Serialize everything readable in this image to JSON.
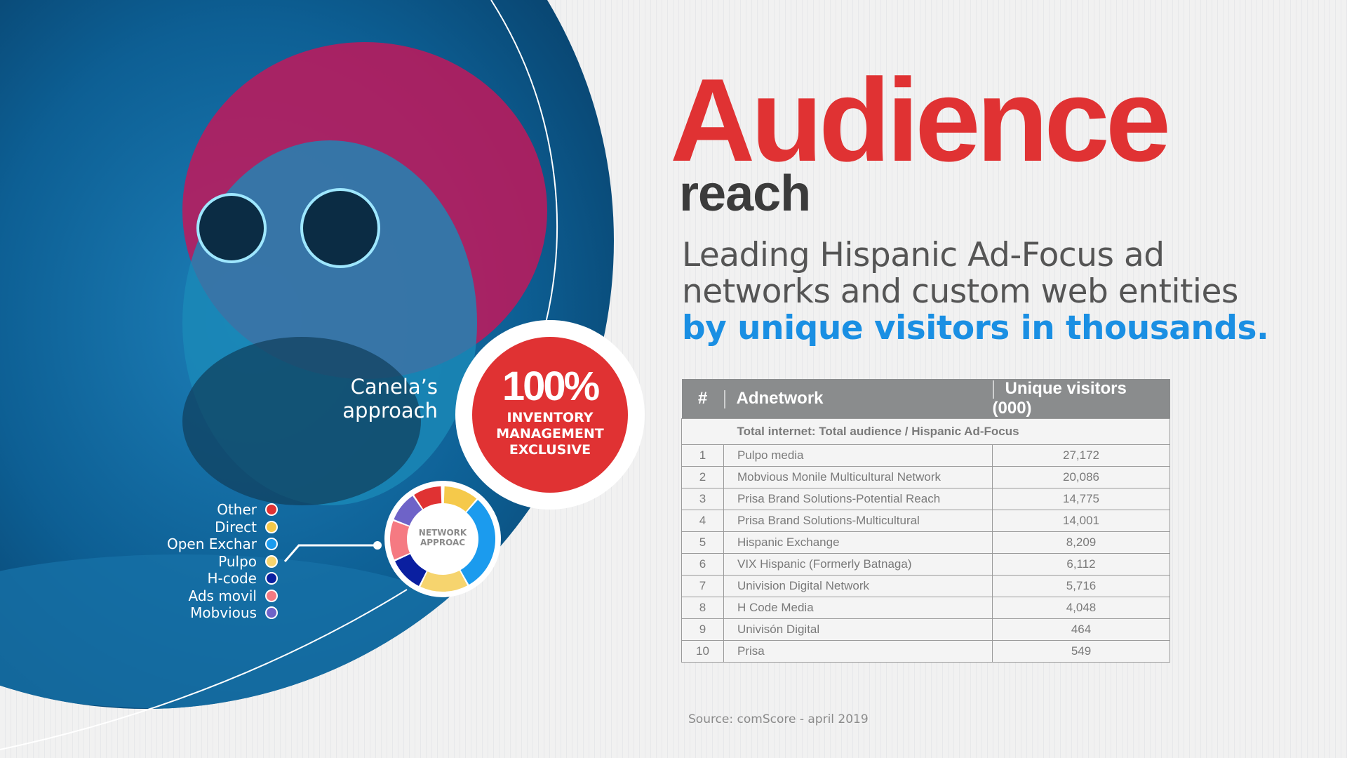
{
  "header": {
    "title": "Audience",
    "subtitle_word": "reach"
  },
  "description": {
    "line1": "Leading Hispanic Ad-Focus ad",
    "line2": "networks and custom web entities",
    "line3": "by unique visitors in thousands."
  },
  "badge": {
    "percent": "100%",
    "line1": "INVENTORY",
    "line2": "MANAGEMENT",
    "line3": "EXCLUSIVE"
  },
  "approach": {
    "line1": "Canela’s",
    "line2": "approach"
  },
  "donut": {
    "label1": "NETWORK",
    "label2": "APPROAC"
  },
  "legend": [
    {
      "label": "Other",
      "color": "#e03233"
    },
    {
      "label": "Direct",
      "color": "#f5c94a"
    },
    {
      "label": "Open Exchar",
      "color": "#1b9bee"
    },
    {
      "label": "Pulpo",
      "color": "#f6d46e"
    },
    {
      "label": "H-code",
      "color": "#0a1fa0"
    },
    {
      "label": "Ads movil",
      "color": "#f57a82"
    },
    {
      "label": "Mobvious",
      "color": "#6e63c8"
    }
  ],
  "table": {
    "headers": {
      "num": "#",
      "network": "Adnetwork",
      "visitors": "Unique visitors (000)"
    },
    "subheader": "Total internet: Total audience / Hispanic Ad-Focus",
    "rows": [
      {
        "n": "1",
        "name": "Pulpo media",
        "v": "27,172"
      },
      {
        "n": "2",
        "name": "Mobvious Monile Multicultural Network",
        "v": "20,086"
      },
      {
        "n": "3",
        "name": "Prisa Brand Solutions-Potential Reach",
        "v": "14,775"
      },
      {
        "n": "4",
        "name": "Prisa Brand Solutions-Multicultural",
        "v": "14,001"
      },
      {
        "n": "5",
        "name": "Hispanic Exchange",
        "v": "8,209"
      },
      {
        "n": "6",
        "name": "VIX Hispanic (Formerly Batnaga)",
        "v": "6,112"
      },
      {
        "n": "7",
        "name": "Univision Digital Network",
        "v": "5,716"
      },
      {
        "n": "8",
        "name": "H Code Media",
        "v": "4,048"
      },
      {
        "n": "9",
        "name": "Univisón Digital",
        "v": "464"
      },
      {
        "n": "10",
        "name": "Prisa",
        "v": "549"
      }
    ]
  },
  "source": "Source: comScore - april 2019"
}
